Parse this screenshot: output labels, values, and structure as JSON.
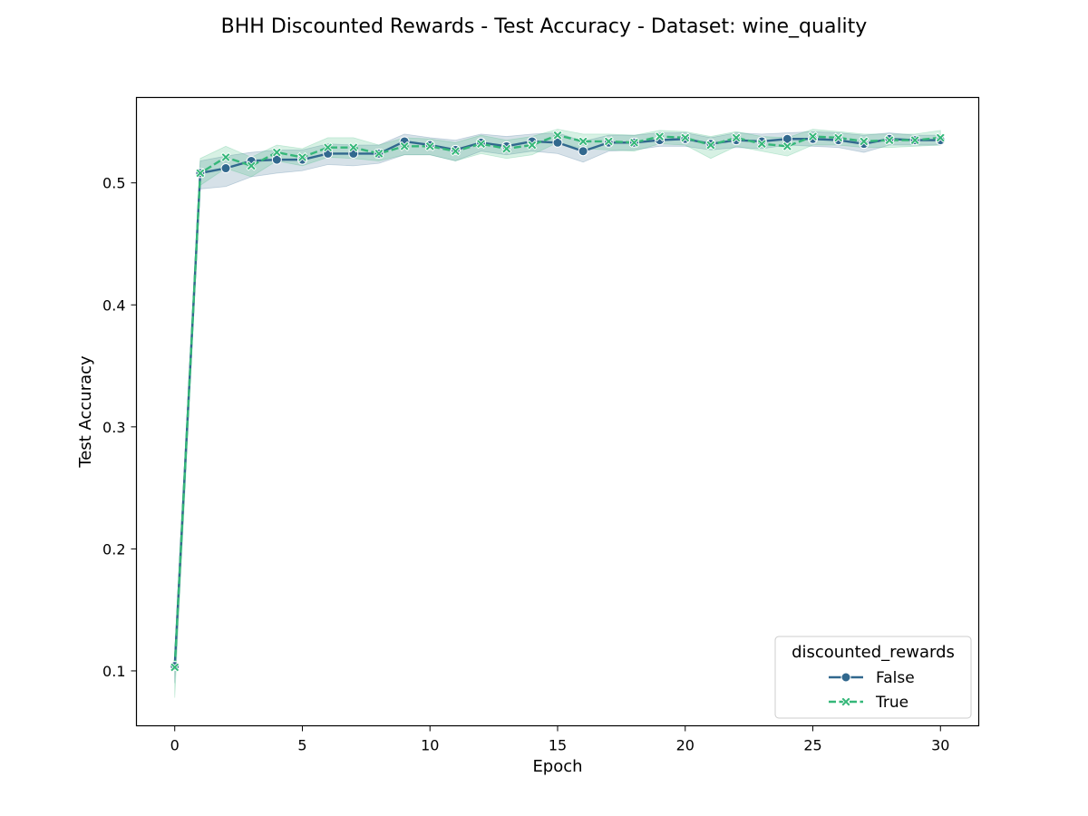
{
  "chart_data": {
    "type": "line",
    "title": "BHH Discounted Rewards - Test Accuracy - Dataset: wine_quality",
    "xlabel": "Epoch",
    "ylabel": "Test Accuracy",
    "xlim": [
      -1.5,
      31.5
    ],
    "ylim": [
      0.055,
      0.57
    ],
    "xticks": [
      0,
      5,
      10,
      15,
      20,
      25,
      30
    ],
    "yticks": [
      0.1,
      0.2,
      0.3,
      0.4,
      0.5
    ],
    "grid": false,
    "legend": {
      "title": "discounted_rewards",
      "placement": "lower-right"
    },
    "x": [
      0,
      1,
      2,
      3,
      4,
      5,
      6,
      7,
      8,
      9,
      10,
      11,
      12,
      13,
      14,
      15,
      16,
      17,
      18,
      19,
      20,
      21,
      22,
      23,
      24,
      25,
      26,
      27,
      28,
      29,
      30
    ],
    "series": [
      {
        "name": "False",
        "color": "#31688e",
        "marker": "circle",
        "linestyle": "solid",
        "values": [
          0.104,
          0.508,
          0.512,
          0.518,
          0.519,
          0.519,
          0.524,
          0.524,
          0.524,
          0.534,
          0.531,
          0.527,
          0.533,
          0.53,
          0.534,
          0.533,
          0.526,
          0.533,
          0.533,
          0.535,
          0.536,
          0.532,
          0.535,
          0.534,
          0.536,
          0.536,
          0.535,
          0.532,
          0.536,
          0.535,
          0.535
        ],
        "lower": [
          0.09,
          0.495,
          0.497,
          0.505,
          0.508,
          0.51,
          0.515,
          0.514,
          0.516,
          0.523,
          0.523,
          0.518,
          0.526,
          0.523,
          0.526,
          0.524,
          0.517,
          0.526,
          0.527,
          0.53,
          0.53,
          0.527,
          0.529,
          0.528,
          0.531,
          0.53,
          0.529,
          0.525,
          0.531,
          0.531,
          0.531
        ],
        "upper": [
          0.112,
          0.518,
          0.522,
          0.525,
          0.527,
          0.527,
          0.532,
          0.531,
          0.531,
          0.54,
          0.537,
          0.535,
          0.54,
          0.538,
          0.54,
          0.541,
          0.534,
          0.539,
          0.539,
          0.541,
          0.541,
          0.537,
          0.541,
          0.54,
          0.541,
          0.542,
          0.541,
          0.539,
          0.541,
          0.539,
          0.539
        ]
      },
      {
        "name": "True",
        "color": "#35b779",
        "marker": "x",
        "linestyle": "dashed",
        "values": [
          0.103,
          0.508,
          0.521,
          0.514,
          0.525,
          0.521,
          0.529,
          0.529,
          0.524,
          0.53,
          0.53,
          0.526,
          0.532,
          0.528,
          0.531,
          0.539,
          0.534,
          0.534,
          0.533,
          0.538,
          0.537,
          0.531,
          0.537,
          0.532,
          0.53,
          0.538,
          0.537,
          0.534,
          0.535,
          0.535,
          0.537
        ],
        "lower": [
          0.078,
          0.498,
          0.512,
          0.505,
          0.518,
          0.514,
          0.521,
          0.52,
          0.518,
          0.523,
          0.523,
          0.518,
          0.524,
          0.52,
          0.523,
          0.533,
          0.528,
          0.527,
          0.526,
          0.532,
          0.531,
          0.52,
          0.53,
          0.526,
          0.522,
          0.531,
          0.531,
          0.529,
          0.529,
          0.53,
          0.531
        ],
        "upper": [
          0.115,
          0.52,
          0.53,
          0.521,
          0.531,
          0.528,
          0.537,
          0.537,
          0.531,
          0.537,
          0.536,
          0.533,
          0.539,
          0.535,
          0.538,
          0.544,
          0.54,
          0.54,
          0.539,
          0.543,
          0.542,
          0.538,
          0.542,
          0.538,
          0.537,
          0.544,
          0.542,
          0.54,
          0.54,
          0.54,
          0.543
        ]
      }
    ]
  }
}
